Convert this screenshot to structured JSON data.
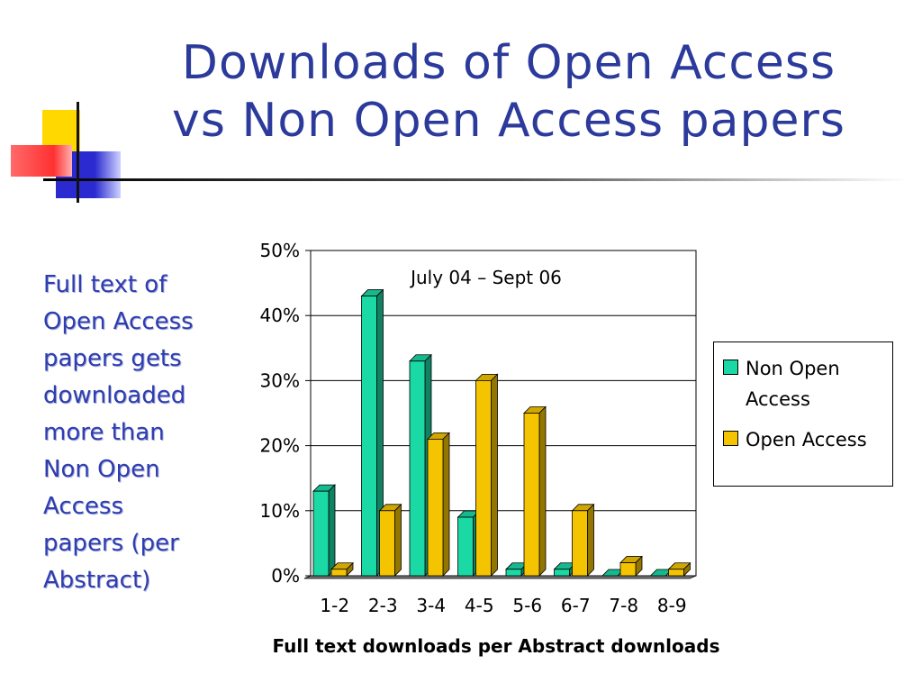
{
  "slide": {
    "title_lines": [
      "Downloads of Open Access",
      "vs Non Open Access papers"
    ],
    "side_text_lines": [
      "Full text of",
      "Open Access",
      "papers  gets",
      "downloaded",
      "more than",
      "Non Open",
      "Access",
      "papers (per",
      "Abstract)"
    ]
  },
  "colors": {
    "title": "#2b3a9b",
    "non_open_access": "#1ad9a5",
    "open_access": "#f5c400"
  },
  "chart_data": {
    "type": "bar",
    "annotation": "July 04 – Sept 06",
    "xlabel": "Full text downloads per Abstract downloads",
    "ylabel": "",
    "categories": [
      "1-2",
      "2-3",
      "3-4",
      "4-5",
      "5-6",
      "6-7",
      "7-8",
      "8-9"
    ],
    "yticks": [
      "0%",
      "10%",
      "20%",
      "30%",
      "40%",
      "50%"
    ],
    "ylim": [
      0,
      50
    ],
    "grid": true,
    "legend": "right",
    "series": [
      {
        "name": "Non Open Access",
        "values": [
          13,
          43,
          33,
          9,
          1,
          1,
          0,
          0
        ]
      },
      {
        "name": "Open Access",
        "values": [
          1,
          10,
          21,
          30,
          25,
          10,
          2,
          1
        ]
      }
    ]
  }
}
